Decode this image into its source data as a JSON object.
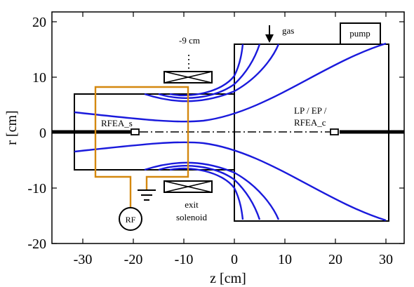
{
  "diagram": {
    "axes": {
      "x": {
        "title": "z [cm]",
        "range": [
          -35,
          35
        ],
        "ticks": [
          -30,
          -20,
          -10,
          0,
          10,
          20,
          30
        ],
        "tick_labels": [
          "-30",
          "-20",
          "-10",
          "0",
          "10",
          "20",
          "30"
        ]
      },
      "y": {
        "title": "r [cm]",
        "range": [
          -20,
          22
        ],
        "ticks": [
          20,
          10,
          0,
          -10,
          -20
        ],
        "tick_labels": [
          "20",
          "10",
          "0",
          "-10",
          "-20"
        ]
      }
    },
    "labels": {
      "gas": "gas",
      "pump": "pump",
      "solenoid_position": "-9 cm",
      "rfea_s": "RFEA_s",
      "probe_line1": "LP / EP /",
      "probe_line2": "RFEA_c",
      "rf": "RF",
      "exit_line1": "exit",
      "exit_line2": "solenoid"
    },
    "colors": {
      "field_lines": "#1a1adc",
      "rf_circuit": "#d4880f",
      "structure": "#000000"
    }
  }
}
